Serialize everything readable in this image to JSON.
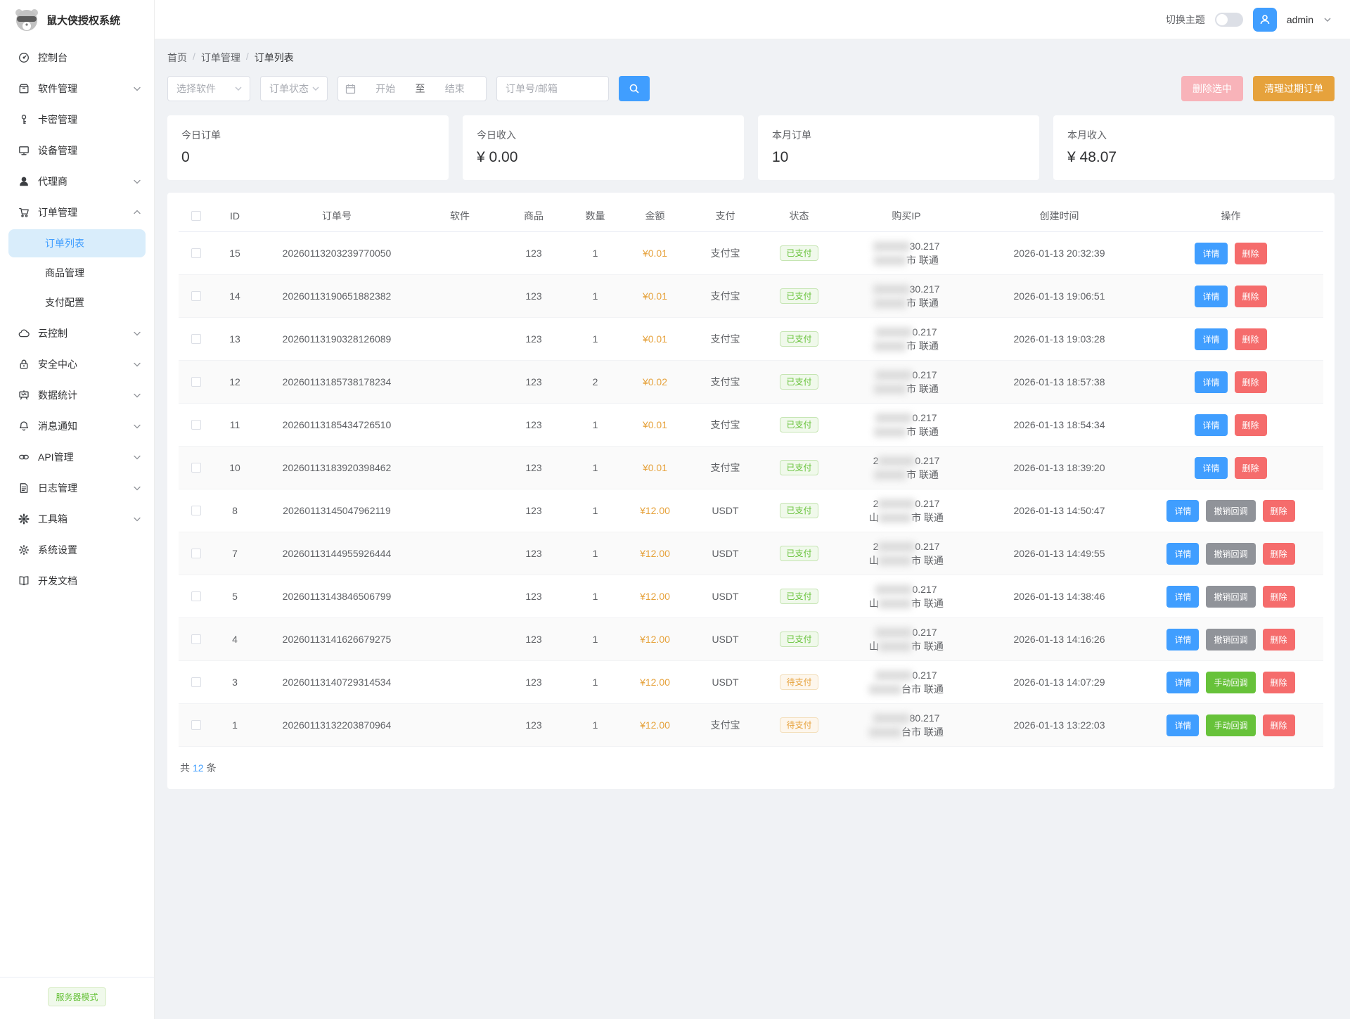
{
  "app": {
    "title": "鼠大侠授权系统"
  },
  "topbar": {
    "theme_label": "切换主题",
    "theme_on": false,
    "username": "admin"
  },
  "sidebar": {
    "items": [
      {
        "label": "控制台",
        "icon": "dashboard-icon",
        "arrow": null
      },
      {
        "label": "软件管理",
        "icon": "package-icon",
        "arrow": "down"
      },
      {
        "label": "卡密管理",
        "icon": "key-icon",
        "arrow": null
      },
      {
        "label": "设备管理",
        "icon": "monitor-icon",
        "arrow": null
      },
      {
        "label": "代理商",
        "icon": "agent-icon",
        "arrow": "down"
      },
      {
        "label": "订单管理",
        "icon": "cart-icon",
        "arrow": "up",
        "expanded": true,
        "children": [
          {
            "label": "订单列表",
            "active": true
          },
          {
            "label": "商品管理",
            "active": false
          },
          {
            "label": "支付配置",
            "active": false
          }
        ]
      },
      {
        "label": "云控制",
        "icon": "cloud-icon",
        "arrow": "down"
      },
      {
        "label": "安全中心",
        "icon": "lock-icon",
        "arrow": "down"
      },
      {
        "label": "数据统计",
        "icon": "chart-icon",
        "arrow": "down"
      },
      {
        "label": "消息通知",
        "icon": "bell-icon",
        "arrow": "down"
      },
      {
        "label": "API管理",
        "icon": "link-icon",
        "arrow": "down"
      },
      {
        "label": "日志管理",
        "icon": "file-icon",
        "arrow": "down"
      },
      {
        "label": "工具箱",
        "icon": "tools-icon",
        "arrow": "down"
      },
      {
        "label": "系统设置",
        "icon": "gear-icon",
        "arrow": null
      },
      {
        "label": "开发文档",
        "icon": "book-icon",
        "arrow": null
      }
    ],
    "footer_badge": "服务器模式"
  },
  "breadcrumb": [
    "首页",
    "订单管理",
    "订单列表"
  ],
  "filters": {
    "software_placeholder": "选择软件",
    "status_placeholder": "订单状态",
    "date_start_placeholder": "开始",
    "date_separator": "至",
    "date_end_placeholder": "结束",
    "keyword_placeholder": "订单号/邮箱",
    "delete_selected_label": "删除选中",
    "clean_expired_label": "清理过期订单"
  },
  "stats": [
    {
      "label": "今日订单",
      "value": "0"
    },
    {
      "label": "今日收入",
      "value": "¥ 0.00"
    },
    {
      "label": "本月订单",
      "value": "10"
    },
    {
      "label": "本月收入",
      "value": "¥ 48.07"
    }
  ],
  "table": {
    "columns": [
      "ID",
      "订单号",
      "软件",
      "商品",
      "数量",
      "金额",
      "支付",
      "状态",
      "购买IP",
      "创建时间",
      "操作"
    ],
    "rows": [
      {
        "id": "15",
        "order_no": "20260113203239770050",
        "software": "",
        "product": "123",
        "qty": "1",
        "amount": "¥0.01",
        "pay": "支付宝",
        "status": "已支付",
        "paid": true,
        "ip": {
          "line1_pre": "",
          "line1_suf": "30.217",
          "line2_pre": "",
          "line2_suf": "市 联通"
        },
        "created": "2026-01-13 20:32:39",
        "actions": [
          {
            "label": "详情",
            "type": "primary"
          },
          {
            "label": "删除",
            "type": "danger"
          }
        ]
      },
      {
        "id": "14",
        "order_no": "20260113190651882382",
        "software": "",
        "product": "123",
        "qty": "1",
        "amount": "¥0.01",
        "pay": "支付宝",
        "status": "已支付",
        "paid": true,
        "ip": {
          "line1_pre": "",
          "line1_suf": "30.217",
          "line2_pre": "",
          "line2_suf": "市 联通"
        },
        "created": "2026-01-13 19:06:51",
        "actions": [
          {
            "label": "详情",
            "type": "primary"
          },
          {
            "label": "删除",
            "type": "danger"
          }
        ]
      },
      {
        "id": "13",
        "order_no": "20260113190328126089",
        "software": "",
        "product": "123",
        "qty": "1",
        "amount": "¥0.01",
        "pay": "支付宝",
        "status": "已支付",
        "paid": true,
        "ip": {
          "line1_pre": "",
          "line1_suf": "0.217",
          "line2_pre": "",
          "line2_suf": "市 联通"
        },
        "created": "2026-01-13 19:03:28",
        "actions": [
          {
            "label": "详情",
            "type": "primary"
          },
          {
            "label": "删除",
            "type": "danger"
          }
        ]
      },
      {
        "id": "12",
        "order_no": "20260113185738178234",
        "software": "",
        "product": "123",
        "qty": "2",
        "amount": "¥0.02",
        "pay": "支付宝",
        "status": "已支付",
        "paid": true,
        "ip": {
          "line1_pre": "",
          "line1_suf": "0.217",
          "line2_pre": "",
          "line2_suf": "市 联通"
        },
        "created": "2026-01-13 18:57:38",
        "actions": [
          {
            "label": "详情",
            "type": "primary"
          },
          {
            "label": "删除",
            "type": "danger"
          }
        ]
      },
      {
        "id": "11",
        "order_no": "20260113185434726510",
        "software": "",
        "product": "123",
        "qty": "1",
        "amount": "¥0.01",
        "pay": "支付宝",
        "status": "已支付",
        "paid": true,
        "ip": {
          "line1_pre": "",
          "line1_suf": "0.217",
          "line2_pre": "",
          "line2_suf": "市 联通"
        },
        "created": "2026-01-13 18:54:34",
        "actions": [
          {
            "label": "详情",
            "type": "primary"
          },
          {
            "label": "删除",
            "type": "danger"
          }
        ]
      },
      {
        "id": "10",
        "order_no": "20260113183920398462",
        "software": "",
        "product": "123",
        "qty": "1",
        "amount": "¥0.01",
        "pay": "支付宝",
        "status": "已支付",
        "paid": true,
        "ip": {
          "line1_pre": "2",
          "line1_suf": "0.217",
          "line2_pre": "",
          "line2_suf": "市 联通"
        },
        "created": "2026-01-13 18:39:20",
        "actions": [
          {
            "label": "详情",
            "type": "primary"
          },
          {
            "label": "删除",
            "type": "danger"
          }
        ]
      },
      {
        "id": "8",
        "order_no": "20260113145047962119",
        "software": "",
        "product": "123",
        "qty": "1",
        "amount": "¥12.00",
        "pay": "USDT",
        "status": "已支付",
        "paid": true,
        "ip": {
          "line1_pre": "2",
          "line1_suf": "0.217",
          "line2_pre": "山",
          "line2_suf": "市 联通"
        },
        "created": "2026-01-13 14:50:47",
        "actions": [
          {
            "label": "详情",
            "type": "primary"
          },
          {
            "label": "撤销回调",
            "type": "info"
          },
          {
            "label": "删除",
            "type": "danger"
          }
        ]
      },
      {
        "id": "7",
        "order_no": "20260113144955926444",
        "software": "",
        "product": "123",
        "qty": "1",
        "amount": "¥12.00",
        "pay": "USDT",
        "status": "已支付",
        "paid": true,
        "ip": {
          "line1_pre": "2",
          "line1_suf": "0.217",
          "line2_pre": "山",
          "line2_suf": "市 联通"
        },
        "created": "2026-01-13 14:49:55",
        "actions": [
          {
            "label": "详情",
            "type": "primary"
          },
          {
            "label": "撤销回调",
            "type": "info"
          },
          {
            "label": "删除",
            "type": "danger"
          }
        ]
      },
      {
        "id": "5",
        "order_no": "20260113143846506799",
        "software": "",
        "product": "123",
        "qty": "1",
        "amount": "¥12.00",
        "pay": "USDT",
        "status": "已支付",
        "paid": true,
        "ip": {
          "line1_pre": "",
          "line1_suf": "0.217",
          "line2_pre": "山",
          "line2_suf": "市 联通"
        },
        "created": "2026-01-13 14:38:46",
        "actions": [
          {
            "label": "详情",
            "type": "primary"
          },
          {
            "label": "撤销回调",
            "type": "info"
          },
          {
            "label": "删除",
            "type": "danger"
          }
        ]
      },
      {
        "id": "4",
        "order_no": "20260113141626679275",
        "software": "",
        "product": "123",
        "qty": "1",
        "amount": "¥12.00",
        "pay": "USDT",
        "status": "已支付",
        "paid": true,
        "ip": {
          "line1_pre": "",
          "line1_suf": "0.217",
          "line2_pre": "山",
          "line2_suf": "市 联通"
        },
        "created": "2026-01-13 14:16:26",
        "actions": [
          {
            "label": "详情",
            "type": "primary"
          },
          {
            "label": "撤销回调",
            "type": "info"
          },
          {
            "label": "删除",
            "type": "danger"
          }
        ]
      },
      {
        "id": "3",
        "order_no": "20260113140729314534",
        "software": "",
        "product": "123",
        "qty": "1",
        "amount": "¥12.00",
        "pay": "USDT",
        "status": "待支付",
        "paid": false,
        "ip": {
          "line1_pre": "",
          "line1_suf": "0.217",
          "line2_pre": "",
          "line2_suf": "台市 联通"
        },
        "created": "2026-01-13 14:07:29",
        "actions": [
          {
            "label": "详情",
            "type": "primary"
          },
          {
            "label": "手动回调",
            "type": "success"
          },
          {
            "label": "删除",
            "type": "danger"
          }
        ]
      },
      {
        "id": "1",
        "order_no": "20260113132203870964",
        "software": "",
        "product": "123",
        "qty": "1",
        "amount": "¥12.00",
        "pay": "支付宝",
        "status": "待支付",
        "paid": false,
        "ip": {
          "line1_pre": "",
          "line1_suf": "80.217",
          "line2_pre": "",
          "line2_suf": "台市 联通"
        },
        "created": "2026-01-13 13:22:03",
        "actions": [
          {
            "label": "详情",
            "type": "primary"
          },
          {
            "label": "手动回调",
            "type": "success"
          },
          {
            "label": "删除",
            "type": "danger"
          }
        ]
      }
    ],
    "total": {
      "prefix": "共",
      "count": "12",
      "suffix": "条"
    }
  },
  "colors": {
    "accent": "#409eff",
    "success": "#67c23a",
    "warning": "#e6a23c",
    "danger": "#f56c6c",
    "info": "#909399",
    "active_menu_bg": "#d9edfb",
    "content_bg": "#f0f2f5"
  }
}
